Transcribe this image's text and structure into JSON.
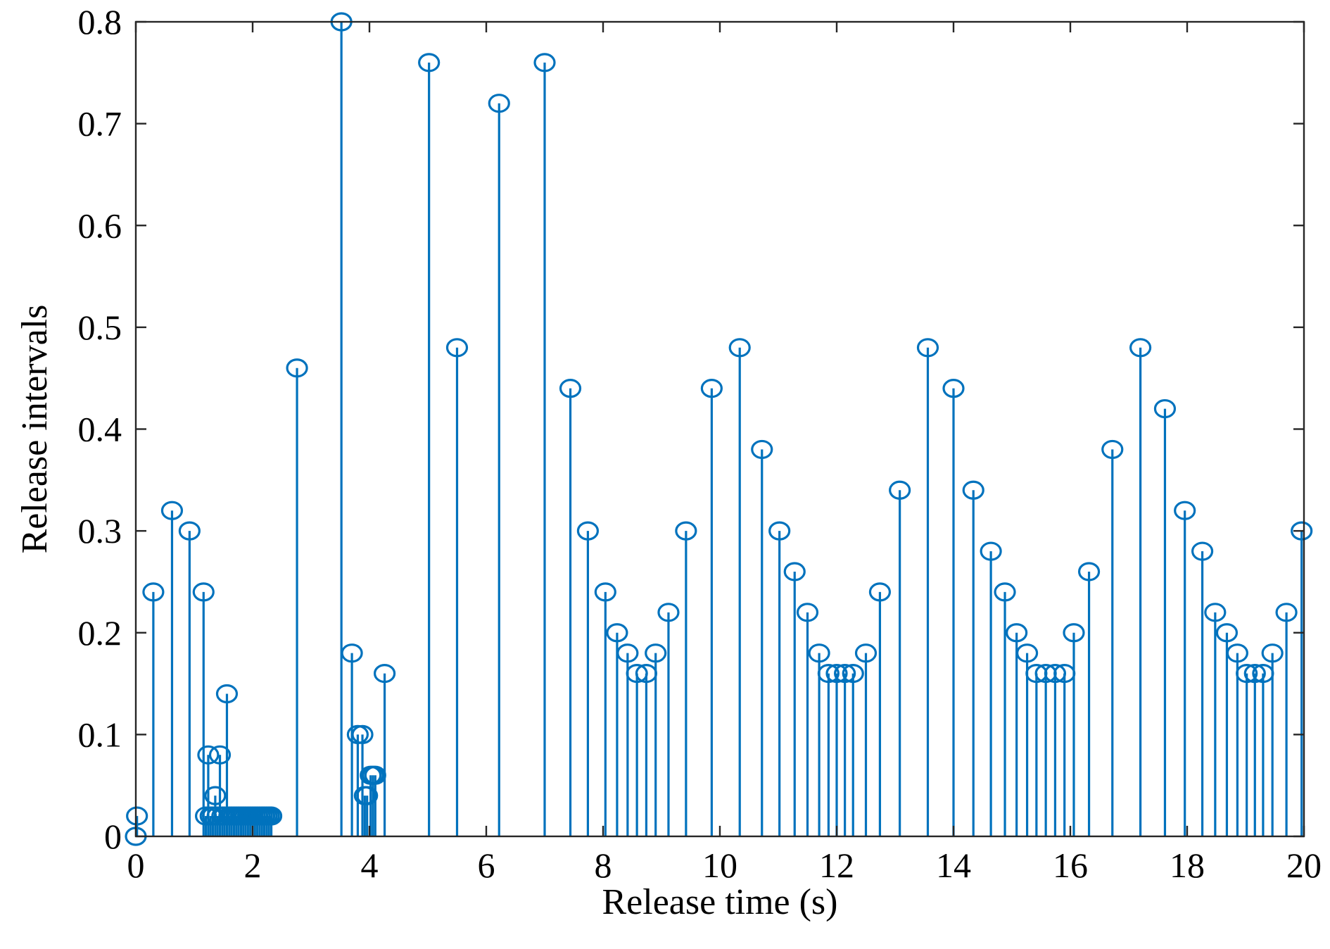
{
  "chart_data": {
    "type": "stem",
    "title": "",
    "xlabel": "Release time (s)",
    "ylabel": "Release intervals",
    "xlim": [
      0,
      20
    ],
    "ylim": [
      0,
      0.8
    ],
    "xticks": [
      0,
      2,
      4,
      6,
      8,
      10,
      12,
      14,
      16,
      18,
      20
    ],
    "yticks": [
      0,
      0.1,
      0.2,
      0.3,
      0.4,
      0.5,
      0.6,
      0.7,
      0.8
    ],
    "xtick_labels": [
      "0",
      "2",
      "4",
      "6",
      "8",
      "10",
      "12",
      "14",
      "16",
      "18",
      "20"
    ],
    "ytick_labels": [
      "0",
      "0.1",
      "0.2",
      "0.3",
      "0.4",
      "0.5",
      "0.6",
      "0.7",
      "0.8"
    ],
    "grid": false,
    "box": true,
    "color": "#0072BD",
    "marker": "open-circle",
    "x": [
      0,
      0.02,
      0.3,
      0.62,
      0.92,
      1.16,
      1.2,
      1.24,
      1.28,
      1.32,
      1.36,
      1.4,
      1.44,
      1.48,
      1.52,
      1.56,
      1.6,
      1.64,
      1.68,
      1.72,
      1.76,
      1.8,
      1.84,
      1.88,
      1.92,
      1.96,
      2.0,
      2.04,
      2.08,
      2.12,
      2.16,
      2.2,
      2.24,
      2.28,
      2.32,
      2.76,
      3.52,
      3.7,
      3.8,
      3.88,
      3.92,
      3.96,
      4.02,
      4.06,
      4.1,
      4.26,
      5.02,
      5.5,
      6.22,
      7.0,
      7.44,
      7.74,
      8.04,
      8.24,
      8.42,
      8.58,
      8.74,
      8.9,
      9.12,
      9.42,
      9.86,
      10.34,
      10.72,
      11.02,
      11.28,
      11.5,
      11.7,
      11.86,
      12.0,
      12.14,
      12.28,
      12.5,
      12.74,
      13.08,
      13.56,
      14.0,
      14.34,
      14.64,
      14.88,
      15.08,
      15.26,
      15.42,
      15.58,
      15.74,
      15.9,
      16.06,
      16.32,
      16.72,
      17.2,
      17.62,
      17.96,
      18.26,
      18.48,
      18.68,
      18.86,
      19.02,
      19.16,
      19.3,
      19.46,
      19.7,
      19.96
    ],
    "values": [
      0,
      0.02,
      0.24,
      0.32,
      0.3,
      0.24,
      0.02,
      0.08,
      0.02,
      0.02,
      0.04,
      0.02,
      0.08,
      0.02,
      0.02,
      0.14,
      0.02,
      0.02,
      0.02,
      0.02,
      0.02,
      0.02,
      0.02,
      0.02,
      0.02,
      0.02,
      0.02,
      0.02,
      0.02,
      0.02,
      0.02,
      0.02,
      0.02,
      0.02,
      0.02,
      0.46,
      0.8,
      0.18,
      0.1,
      0.1,
      0.04,
      0.04,
      0.06,
      0.06,
      0.06,
      0.16,
      0.76,
      0.48,
      0.72,
      0.76,
      0.44,
      0.3,
      0.24,
      0.2,
      0.18,
      0.16,
      0.16,
      0.18,
      0.22,
      0.3,
      0.44,
      0.48,
      0.38,
      0.3,
      0.26,
      0.22,
      0.18,
      0.16,
      0.16,
      0.16,
      0.16,
      0.18,
      0.24,
      0.34,
      0.48,
      0.44,
      0.34,
      0.28,
      0.24,
      0.2,
      0.18,
      0.16,
      0.16,
      0.16,
      0.16,
      0.2,
      0.26,
      0.38,
      0.48,
      0.42,
      0.32,
      0.28,
      0.22,
      0.2,
      0.18,
      0.16,
      0.16,
      0.16,
      0.18,
      0.22,
      0.3
    ]
  }
}
